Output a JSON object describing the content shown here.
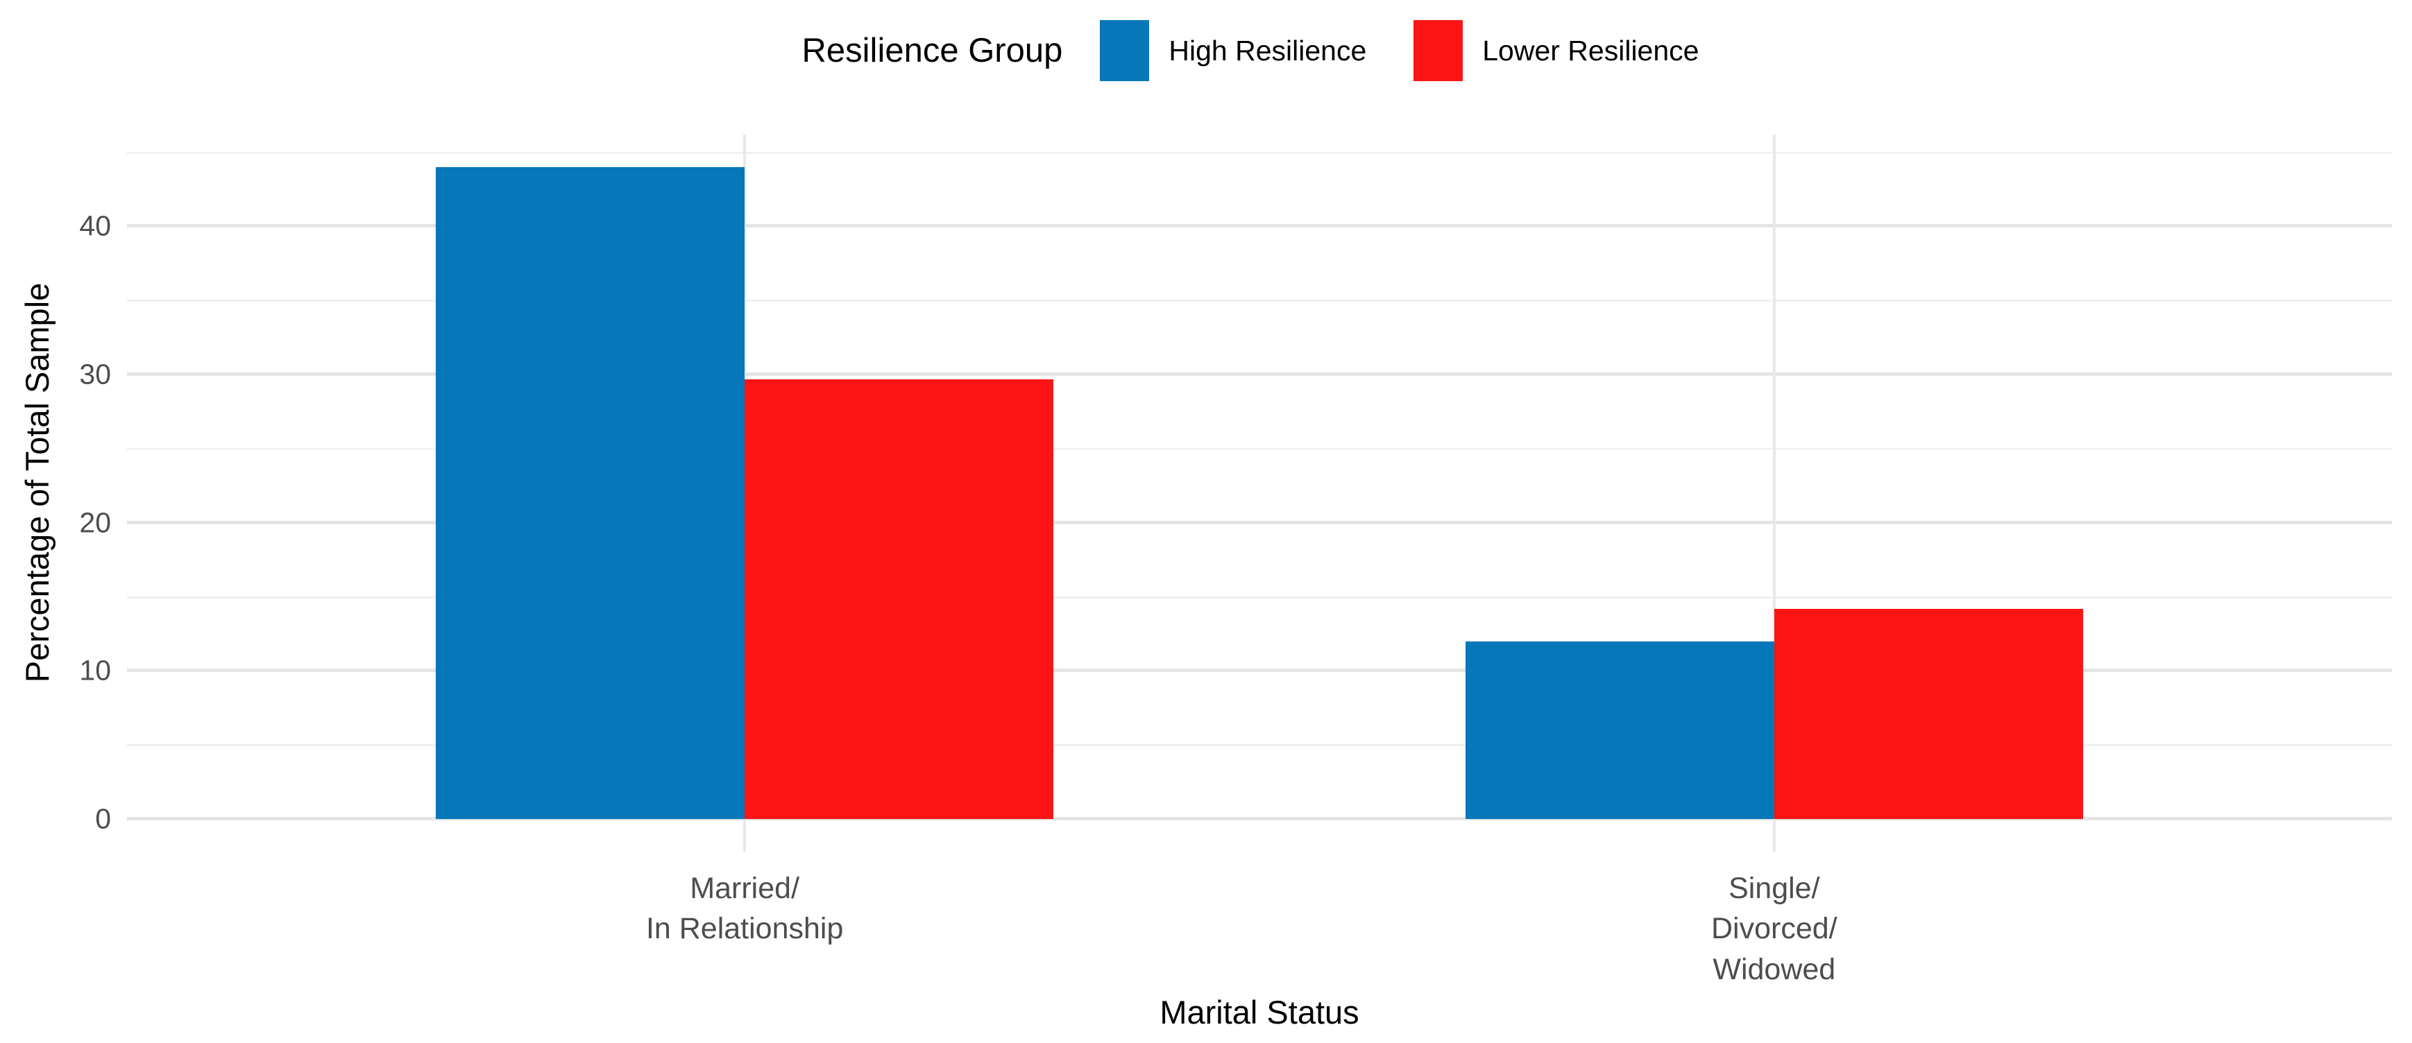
{
  "chart_data": {
    "type": "bar",
    "legend_title": "Resilience Group",
    "categories": [
      "Married/\nIn Relationship",
      "Single/\nDivorced/\nWidowed"
    ],
    "series": [
      {
        "name": "High Resilience",
        "color": "#0677B9",
        "values": [
          44.0,
          12.0
        ]
      },
      {
        "name": "Lower Resilience",
        "color": "#FC1414",
        "values": [
          29.7,
          14.2
        ]
      }
    ],
    "xlabel": "Marital Status",
    "ylabel": "Percentage of Total Sample",
    "y_ticks_major": [
      0,
      10,
      20,
      30,
      40
    ],
    "y_ticks_minor": [
      5,
      15,
      25,
      35,
      45
    ],
    "ylim": [
      0,
      44
    ],
    "layout": {
      "y_domain": [
        -2.2,
        46.2
      ],
      "x_edge_padding": 0.6,
      "bar_slot_fraction": 0.3,
      "grid": "on",
      "legend_position": "top"
    },
    "colors": {
      "grid_major": "#E4E4E4",
      "grid_minor": "#F0F0F0",
      "grid_vertical": "#E8E8E8",
      "axis_text": "#4D4D4D",
      "axis_title": "#000000",
      "background": "#FFFFFF"
    }
  }
}
